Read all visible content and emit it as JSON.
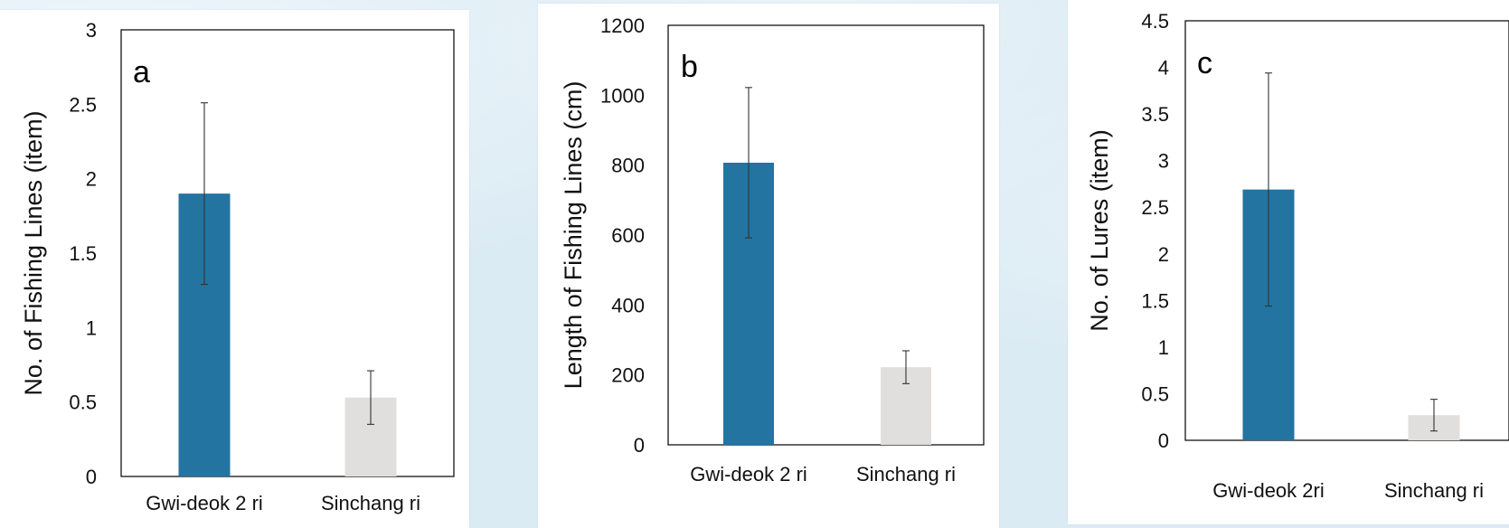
{
  "chart_data": [
    {
      "id": "a",
      "type": "bar",
      "panel_label": "a",
      "title": "",
      "ylabel": "No. of Fishing Lines (item)",
      "xlabel": "",
      "categories": [
        "Gwi-deok 2 ri",
        "Sinchang ri"
      ],
      "values": [
        1.9,
        0.53
      ],
      "errors": [
        0.61,
        0.18
      ],
      "colors": [
        "#2374a0",
        "#e0dfdd"
      ],
      "ylim": [
        0,
        3
      ],
      "yticks": [
        "0",
        "0.5",
        "1",
        "1.5",
        "2",
        "2.5",
        "3"
      ],
      "grid": false,
      "legend": "none"
    },
    {
      "id": "b",
      "type": "bar",
      "panel_label": "b",
      "title": "",
      "ylabel": "Length of Fishing Lines (cm)",
      "xlabel": "",
      "categories": [
        "Gwi-deok 2 ri",
        "Sinchang ri"
      ],
      "values": [
        807,
        222
      ],
      "errors": [
        215,
        47
      ],
      "colors": [
        "#2374a0",
        "#e0dfdd"
      ],
      "ylim": [
        0,
        1200
      ],
      "yticks": [
        "0",
        "200",
        "400",
        "600",
        "800",
        "1000",
        "1200"
      ],
      "grid": false,
      "legend": "none"
    },
    {
      "id": "c",
      "type": "bar",
      "panel_label": "c",
      "title": "",
      "ylabel": "No. of Lures (item)",
      "xlabel": "",
      "categories": [
        "Gwi-deok 2ri",
        "Sinchang ri"
      ],
      "values": [
        2.69,
        0.27
      ],
      "errors": [
        1.25,
        0.17
      ],
      "colors": [
        "#2374a0",
        "#e0dfdd"
      ],
      "ylim": [
        0,
        4.5
      ],
      "yticks": [
        "0",
        "0.5",
        "1",
        "1.5",
        "2",
        "2.5",
        "3",
        "3.5",
        "4",
        "4.5"
      ],
      "grid": false,
      "legend": "none"
    }
  ]
}
